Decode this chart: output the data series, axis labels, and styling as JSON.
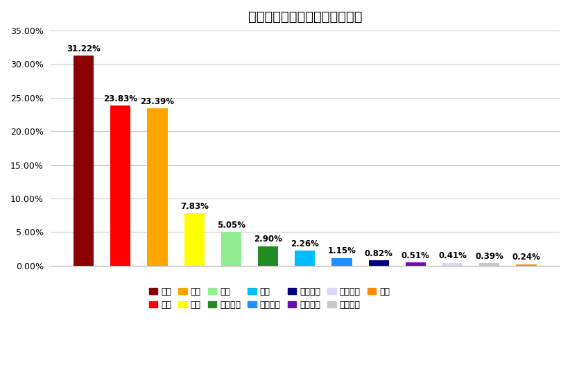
{
  "title": "大学生恋爱时最看重因素比例图",
  "categories": [
    "缘分",
    "人品",
    "三观",
    "性格",
    "外貌",
    "未来潜力",
    "能力",
    "经济条件",
    "兴趣爱好",
    "生活习惯",
    "家庭背景",
    "健康状况",
    "学历"
  ],
  "values": [
    31.22,
    23.83,
    23.39,
    7.83,
    5.05,
    2.9,
    2.26,
    1.15,
    0.82,
    0.51,
    0.41,
    0.39,
    0.24
  ],
  "colors": [
    "#8B0000",
    "#FF0000",
    "#FFA500",
    "#FFFF00",
    "#90EE90",
    "#228B22",
    "#00BFFF",
    "#1E90FF",
    "#000080",
    "#6A0DAD",
    "#D8D8FF",
    "#C8C8C8",
    "#FF8C00"
  ],
  "labels": [
    "31.22%",
    "23.83%",
    "23.39%",
    "7.83%",
    "5.05%",
    "2.90%",
    "2.26%",
    "1.15%",
    "0.82%",
    "0.51%",
    "0.41%",
    "0.39%",
    "0.24%"
  ],
  "ylim": [
    0,
    35
  ],
  "yticks": [
    0,
    5,
    10,
    15,
    20,
    25,
    30,
    35
  ],
  "ytick_labels": [
    "0.00%",
    "5.00%",
    "10.00%",
    "15.00%",
    "20.00%",
    "25.00%",
    "30.00%",
    "35.00%"
  ],
  "background_color": "#FFFFFF",
  "grid_color": "#CCCCCC",
  "title_fontsize": 14,
  "label_fontsize": 8.5,
  "tick_fontsize": 9,
  "legend_fontsize": 9,
  "bar_width": 0.55
}
